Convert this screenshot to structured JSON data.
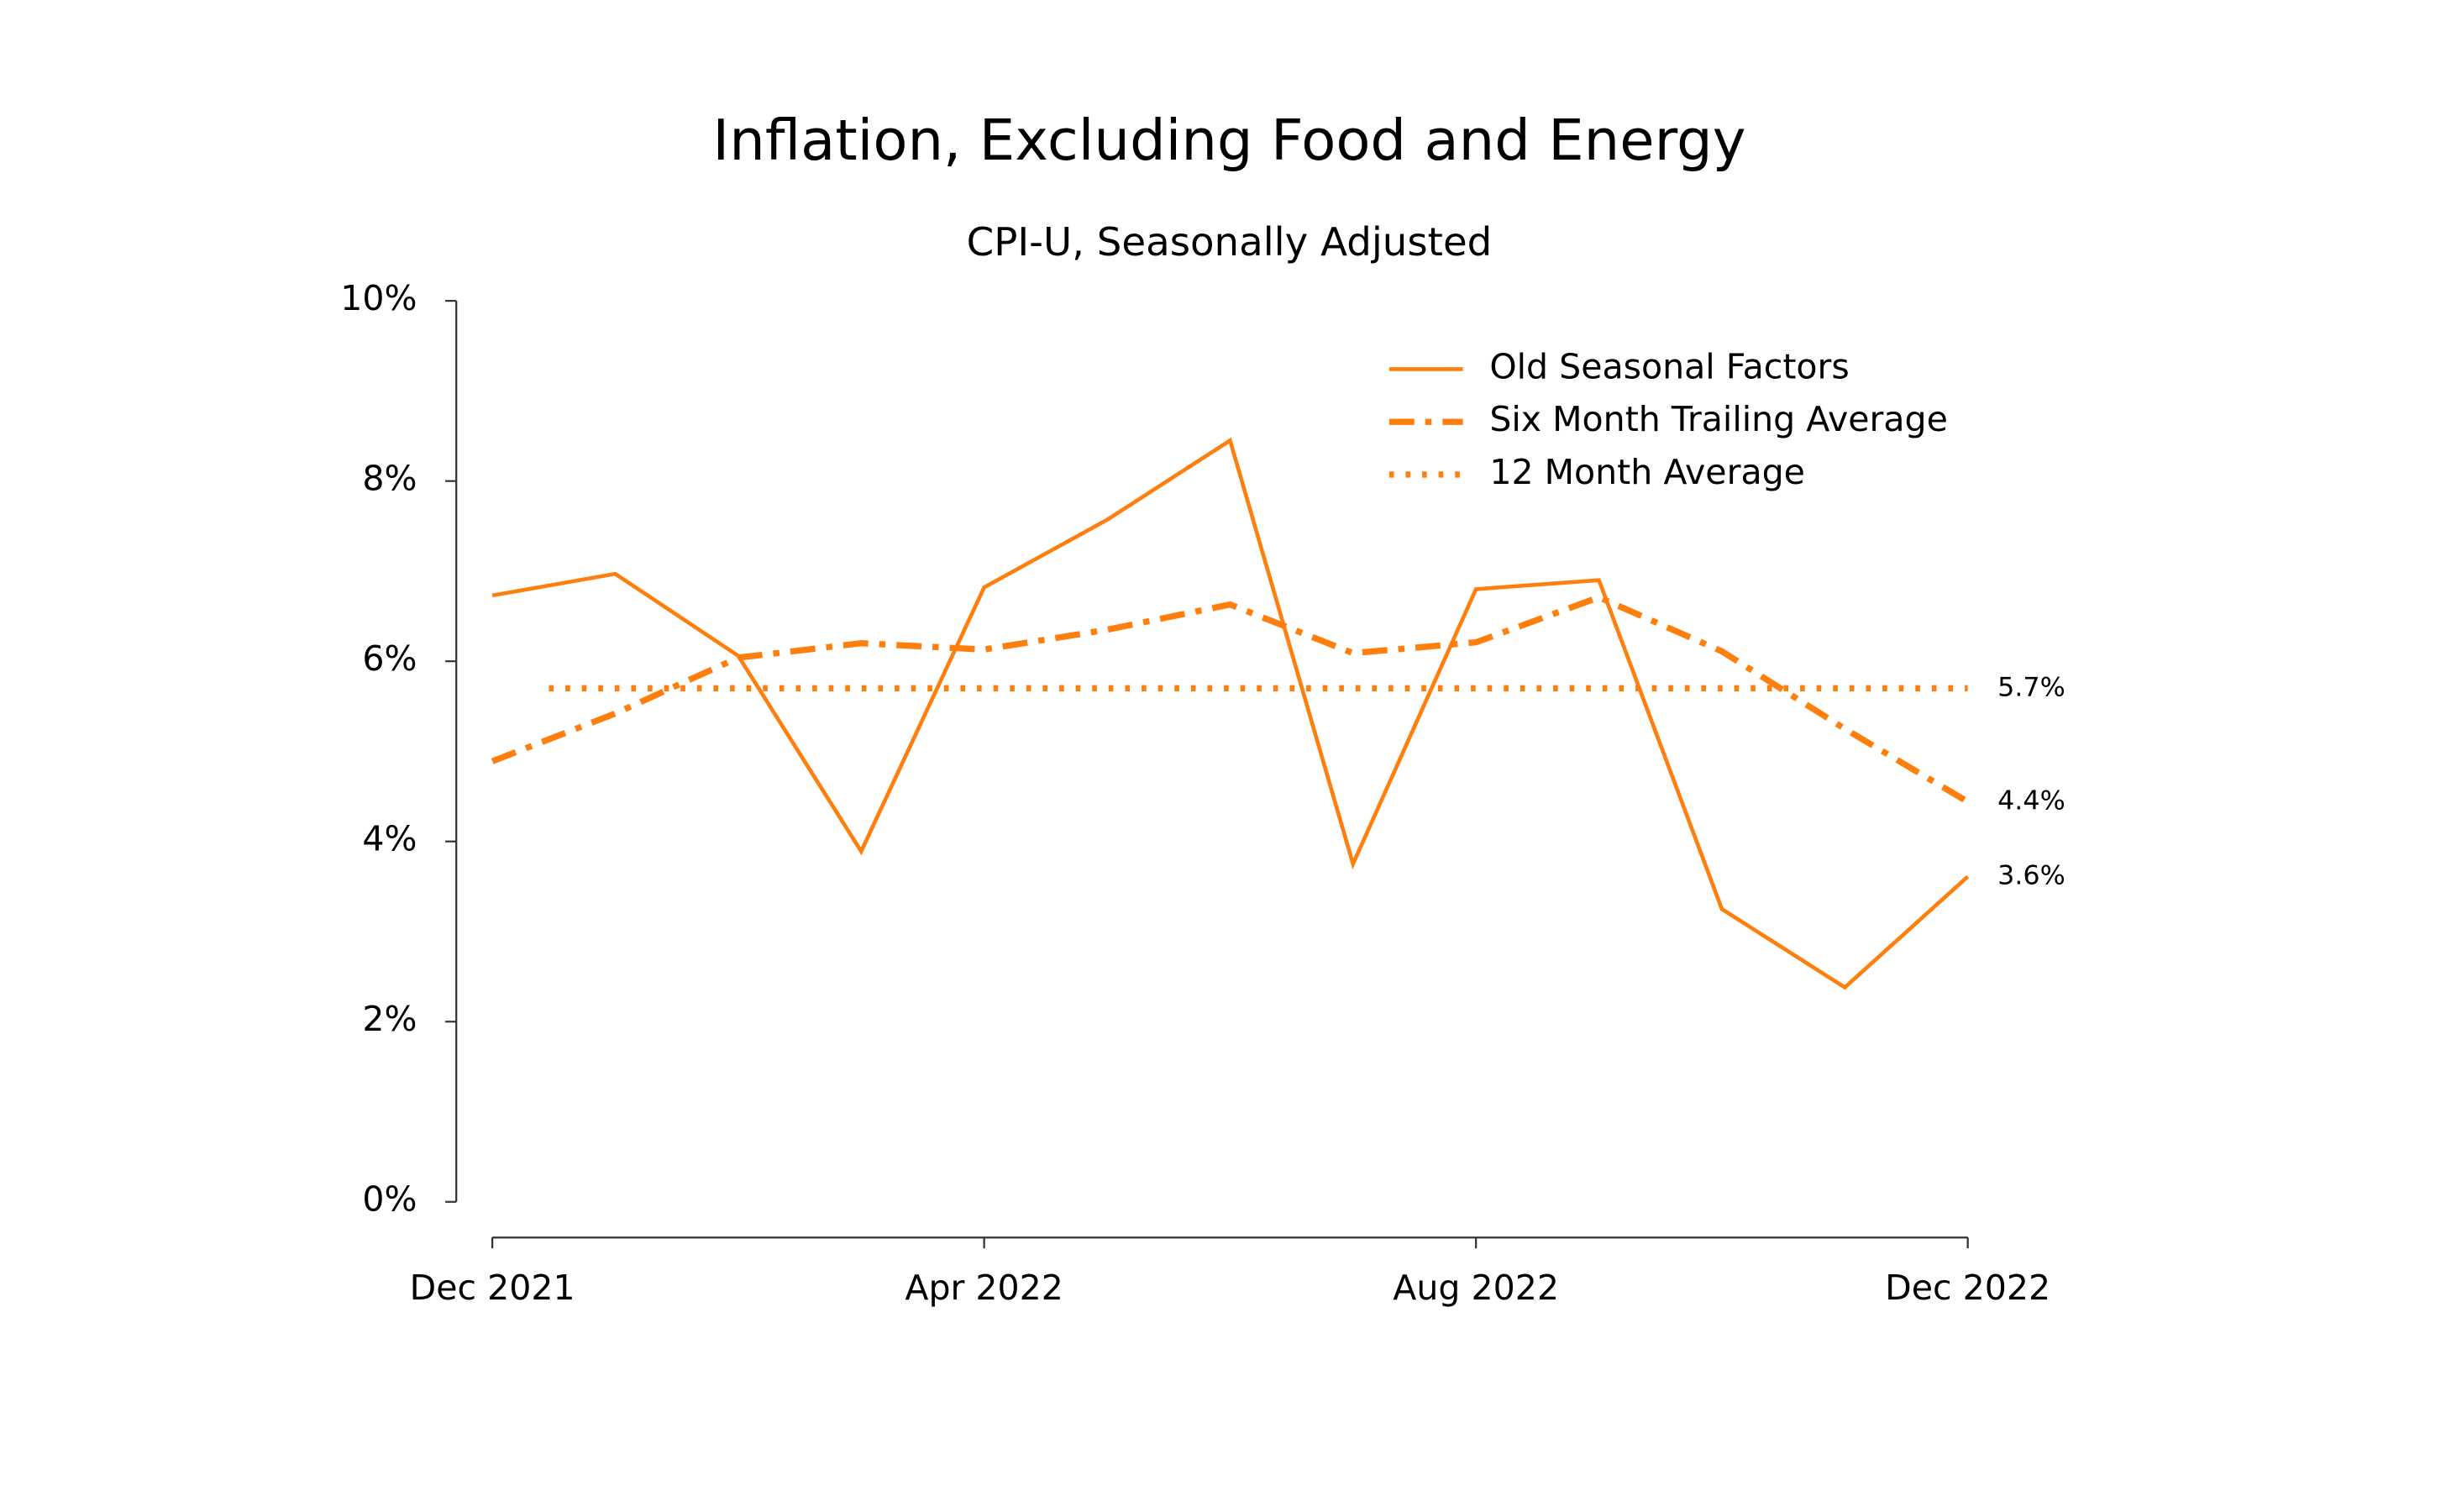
{
  "chart_data": {
    "type": "line",
    "title": "Inflation, Excluding Food and Energy",
    "subtitle": "CPI-U, Seasonally Adjusted",
    "categories": [
      "Dec 2021",
      null,
      null,
      null,
      "Apr 2022",
      null,
      null,
      null,
      "Aug 2022",
      null,
      null,
      null,
      "Dec 2022"
    ],
    "series": [
      {
        "name": "Old Seasonal Factors",
        "color": "#ff7f0e",
        "style": "solid",
        "values": [
          6.73,
          6.97,
          6.06,
          3.89,
          6.82,
          7.57,
          8.45,
          3.75,
          6.8,
          6.9,
          3.25,
          2.38,
          3.61
        ],
        "value_labels": [
          null,
          null,
          null,
          null,
          null,
          null,
          null,
          null,
          null,
          null,
          null,
          null,
          "3.6%"
        ]
      },
      {
        "name": "Six Month Trailing Average",
        "color": "#ff7f0e",
        "style": "dashdot",
        "values": [
          4.89,
          5.42,
          6.04,
          6.2,
          6.13,
          6.35,
          6.63,
          6.09,
          6.21,
          6.71,
          6.11,
          5.25,
          4.44
        ],
        "value_labels": [
          null,
          null,
          null,
          null,
          null,
          null,
          null,
          null,
          null,
          null,
          null,
          null,
          "4.4%"
        ]
      }
    ],
    "reference_line": {
      "name": "12 Month Average",
      "color": "#ff7f0e",
      "style": "dotted",
      "value": 5.7,
      "value_label": "5.7%"
    },
    "ylim": [
      0,
      10
    ],
    "yticks": [
      {
        "value": 0,
        "label": "0%"
      },
      {
        "value": 2,
        "label": "2%"
      },
      {
        "value": 4,
        "label": "4%"
      },
      {
        "value": 6,
        "label": "6%"
      },
      {
        "value": 8,
        "label": "8%"
      },
      {
        "value": 10,
        "label": "10%"
      }
    ],
    "grid": false,
    "legend": "upper right"
  }
}
